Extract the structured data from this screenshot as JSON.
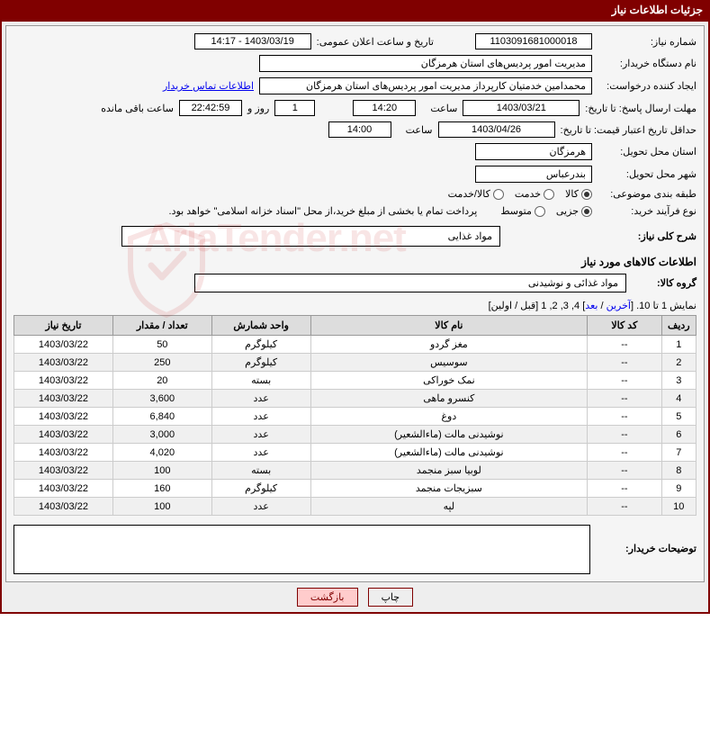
{
  "header": {
    "title": "جزئیات اطلاعات نیاز"
  },
  "fields": {
    "need_no_label": "شماره نیاز:",
    "need_no": "1103091681000018",
    "announce_label": "تاریخ و ساعت اعلان عمومی:",
    "announce_value": "1403/03/19 - 14:17",
    "buyer_label": "نام دستگاه خریدار:",
    "buyer_name": "مدیریت امور پردیس‌های استان هرمزگان",
    "creator_label": "ایجاد کننده درخواست:",
    "creator_name": "محمدامین خدمتیان کارپرداز مدیریت امور پردیس‌های استان هرمزگان",
    "contact_link": "اطلاعات تماس خریدار",
    "deadline_label": "مهلت ارسال پاسخ: تا تاریخ:",
    "deadline_date": "1403/03/21",
    "time_label": "ساعت",
    "deadline_time": "14:20",
    "days_value": "1",
    "days_label": "روز و",
    "countdown": "22:42:59",
    "countdown_label": "ساعت باقی مانده",
    "min_valid_label": "حداقل تاریخ اعتبار قیمت: تا تاریخ:",
    "min_valid_date": "1403/04/26",
    "min_valid_time": "14:00",
    "province_label": "استان محل تحویل:",
    "province": "هرمزگان",
    "city_label": "شهر محل تحویل:",
    "city": "بندرعباس",
    "classify_label": "طبقه بندی موضوعی:",
    "opt_goods": "کالا",
    "opt_service": "خدمت",
    "opt_both": "کالا/خدمت",
    "process_label": "نوع فرآیند خرید:",
    "opt_partial": "جزیی",
    "opt_medium": "متوسط",
    "treasury_note": "پرداخت تمام یا بخشی از مبلغ خرید،از محل \"اسناد خزانه اسلامی\" خواهد بود.",
    "desc_label": "شرح کلی نیاز:",
    "desc_value": "مواد غذایی",
    "goods_section": "اطلاعات کالاهای مورد نیاز",
    "group_label": "گروه کالا:",
    "group_value": "مواد غذائی و نوشیدنی"
  },
  "paging": {
    "text_prefix": "نمایش 1 تا 10. [",
    "last": "آخرین",
    "sep1": " / ",
    "next": "بعد",
    "nums": "] 4, 3, 2, 1 [",
    "prev": "قبل",
    "sep2": " / ",
    "first": "اولین",
    "suffix": "]"
  },
  "table": {
    "headers": {
      "row": "ردیف",
      "code": "کد کالا",
      "name": "نام کالا",
      "unit": "واحد شمارش",
      "qty": "تعداد / مقدار",
      "date": "تاریخ نیاز"
    },
    "rows": [
      {
        "n": "1",
        "code": "--",
        "name": "مغز گردو",
        "unit": "کیلوگرم",
        "qty": "50",
        "date": "1403/03/22"
      },
      {
        "n": "2",
        "code": "--",
        "name": "سوسیس",
        "unit": "کیلوگرم",
        "qty": "250",
        "date": "1403/03/22"
      },
      {
        "n": "3",
        "code": "--",
        "name": "نمک خوراکی",
        "unit": "بسته",
        "qty": "20",
        "date": "1403/03/22"
      },
      {
        "n": "4",
        "code": "--",
        "name": "کنسرو ماهی",
        "unit": "عدد",
        "qty": "3,600",
        "date": "1403/03/22"
      },
      {
        "n": "5",
        "code": "--",
        "name": "دوغ",
        "unit": "عدد",
        "qty": "6,840",
        "date": "1403/03/22"
      },
      {
        "n": "6",
        "code": "--",
        "name": "نوشیدنی مالت (ماءالشعیر)",
        "unit": "عدد",
        "qty": "3,000",
        "date": "1403/03/22"
      },
      {
        "n": "7",
        "code": "--",
        "name": "نوشیدنی مالت (ماءالشعیر)",
        "unit": "عدد",
        "qty": "4,020",
        "date": "1403/03/22"
      },
      {
        "n": "8",
        "code": "--",
        "name": "لوبیا سبز منجمد",
        "unit": "بسته",
        "qty": "100",
        "date": "1403/03/22"
      },
      {
        "n": "9",
        "code": "--",
        "name": "سبزیجات منجمد",
        "unit": "کیلوگرم",
        "qty": "160",
        "date": "1403/03/22"
      },
      {
        "n": "10",
        "code": "--",
        "name": "لپه",
        "unit": "عدد",
        "qty": "100",
        "date": "1403/03/22"
      }
    ]
  },
  "notes": {
    "label": "توضیحات خریدار:"
  },
  "buttons": {
    "print": "چاپ",
    "back": "بازگشت"
  },
  "watermark": "AriaTender.net",
  "colors": {
    "header_bg": "#800000",
    "border": "#800000",
    "link": "#0000ee",
    "btn_back_bg": "#ffcccc"
  }
}
